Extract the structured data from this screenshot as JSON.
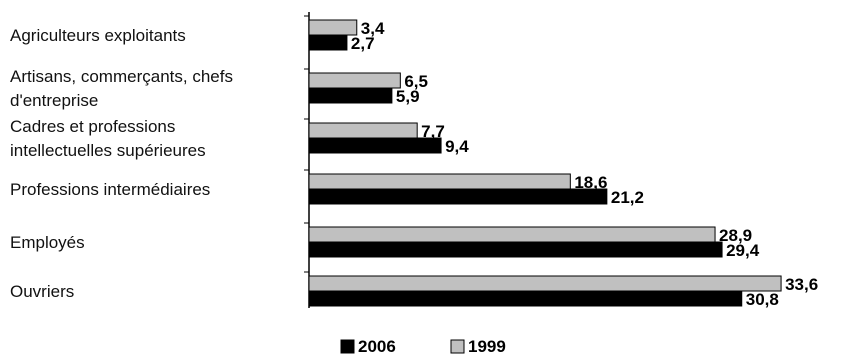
{
  "chart_data": {
    "type": "bar",
    "orientation": "horizontal",
    "title": "",
    "xlabel": "",
    "ylabel": "",
    "categories": [
      [
        "Agriculteurs exploitants"
      ],
      [
        "Artisans, commerçants, chefs",
        "d'entreprise"
      ],
      [
        "Cadres et professions",
        "intellectuelles supérieures"
      ],
      [
        "Professions intermédiaires"
      ],
      [
        "Employés"
      ],
      [
        "Ouvriers"
      ]
    ],
    "series": [
      {
        "name": "1999",
        "values": [
          3.4,
          6.5,
          7.7,
          18.6,
          28.9,
          33.6
        ],
        "value_labels": [
          "3,4",
          "6,5",
          "7,7",
          "18,6",
          "28,9",
          "33,6"
        ],
        "color": "#c0c0c0"
      },
      {
        "name": "2006",
        "values": [
          2.7,
          5.9,
          9.4,
          21.2,
          29.4,
          30.8
        ],
        "value_labels": [
          "2,7",
          "5,9",
          "9,4",
          "21,2",
          "29,4",
          "30,8"
        ],
        "color": "#000000"
      }
    ],
    "legend": {
      "position": "bottom",
      "order": [
        "2006",
        "1999"
      ]
    },
    "grid": false,
    "xlim": [
      0,
      36
    ]
  }
}
